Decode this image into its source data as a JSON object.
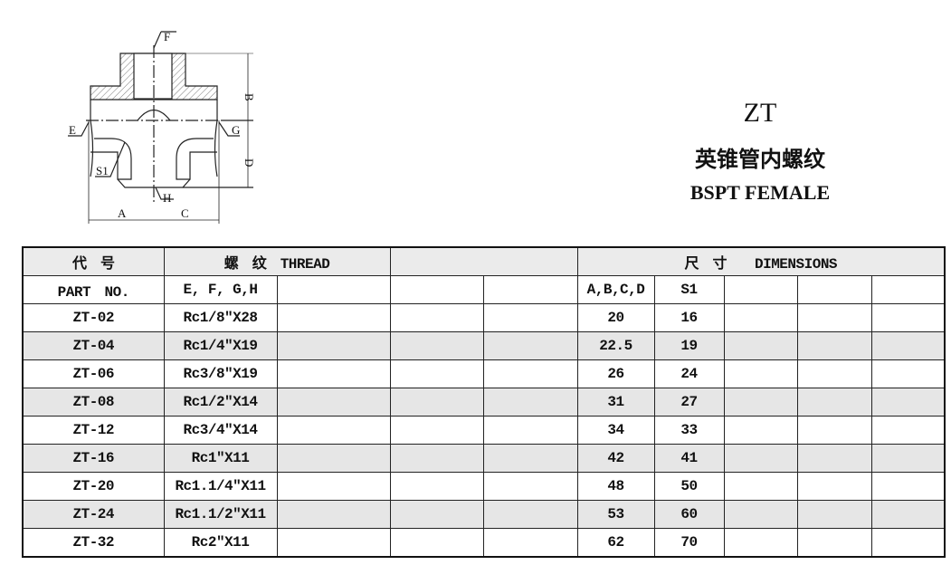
{
  "drawing": {
    "labels": [
      "F",
      "B",
      "E",
      "G",
      "D",
      "S1",
      "H",
      "A",
      "C"
    ]
  },
  "title": {
    "code": "ZT",
    "chinese": "英锥管内螺纹",
    "english": "BSPT FEMALE"
  },
  "table": {
    "header1": {
      "part_cn": "代　号",
      "thread": "螺　纹　THREAD",
      "dimensions": "尺　寸　　DIMENSIONS"
    },
    "header2": {
      "part_en": "PART　NO.",
      "thread_sub": "E, F, G,H",
      "dim_sub": "A,B,C,D",
      "s1": "S1"
    },
    "rows": [
      {
        "part": "ZT-02",
        "thread": "Rc1/8″X28",
        "abcd": "20",
        "s1": "16"
      },
      {
        "part": "ZT-04",
        "thread": "Rc1/4″X19",
        "abcd": "22.5",
        "s1": "19"
      },
      {
        "part": "ZT-06",
        "thread": "Rc3/8″X19",
        "abcd": "26",
        "s1": "24"
      },
      {
        "part": "ZT-08",
        "thread": "Rc1/2″X14",
        "abcd": "31",
        "s1": "27"
      },
      {
        "part": "ZT-12",
        "thread": "Rc3/4″X14",
        "abcd": "34",
        "s1": "33"
      },
      {
        "part": "ZT-16",
        "thread": "Rc1″X11",
        "abcd": "42",
        "s1": "41"
      },
      {
        "part": "ZT-20",
        "thread": "Rc1.1/4″X11",
        "abcd": "48",
        "s1": "50"
      },
      {
        "part": "ZT-24",
        "thread": "Rc1.1/2″X11",
        "abcd": "53",
        "s1": "60"
      },
      {
        "part": "ZT-32",
        "thread": "Rc2″X11",
        "abcd": "62",
        "s1": "70"
      }
    ]
  }
}
